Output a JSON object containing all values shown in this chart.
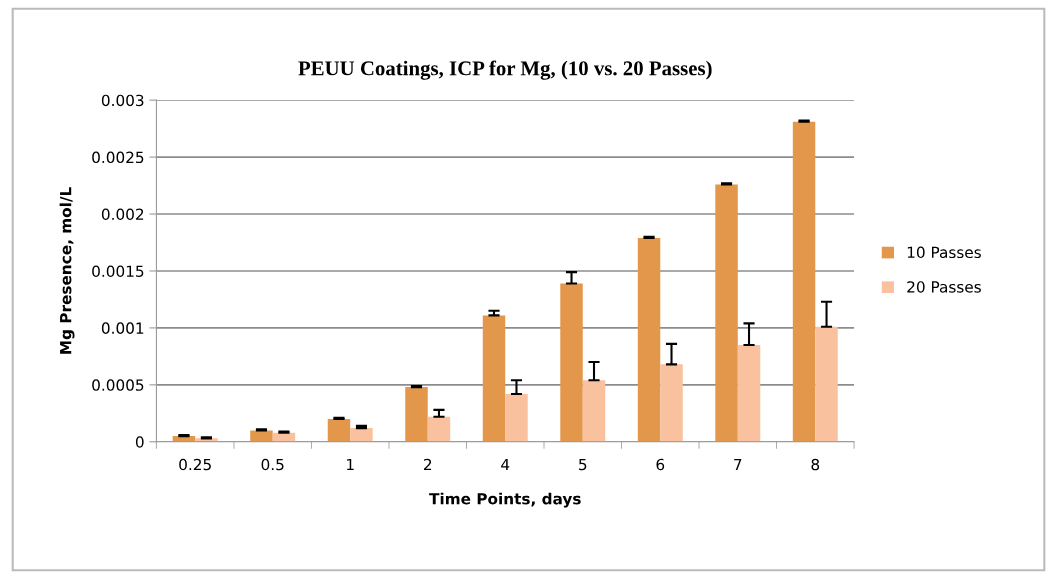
{
  "chart_data": {
    "type": "bar",
    "title": "PEUU Coatings, ICP for Mg, (10 vs. 20 Passes)",
    "xlabel": "Time Points, days",
    "ylabel": "Mg Presence, mol/L",
    "categories": [
      "0.25",
      "0.5",
      "1",
      "2",
      "4",
      "5",
      "6",
      "7",
      "8"
    ],
    "series": [
      {
        "name": "10 Passes",
        "color": "#e3974b",
        "values": [
          5e-05,
          0.0001,
          0.0002,
          0.00048,
          0.00111,
          0.00139,
          0.00179,
          0.00226,
          0.00281
        ],
        "errors": [
          [
            5e-05,
            6e-05
          ],
          [
            0.0001,
            0.00011
          ],
          [
            0.0002,
            0.00021
          ],
          [
            0.00048,
            0.00049
          ],
          [
            0.00111,
            0.00115
          ],
          [
            0.00139,
            0.00149
          ],
          [
            0.00179,
            0.0018
          ],
          [
            0.00226,
            0.00227
          ],
          [
            0.00281,
            0.00282
          ]
        ]
      },
      {
        "name": "20 Passes",
        "color": "#f9c19e",
        "values": [
          3e-05,
          8e-05,
          0.00012,
          0.00022,
          0.00042,
          0.00054,
          0.00068,
          0.00085,
          0.00101
        ],
        "errors": [
          [
            3e-05,
            4e-05
          ],
          [
            8e-05,
            9e-05
          ],
          [
            0.00012,
            0.00014
          ],
          [
            0.00022,
            0.00028
          ],
          [
            0.00042,
            0.00054
          ],
          [
            0.00054,
            0.0007
          ],
          [
            0.00068,
            0.00086
          ],
          [
            0.00085,
            0.00104
          ],
          [
            0.00101,
            0.00123
          ]
        ]
      }
    ],
    "ylim": [
      0,
      0.003
    ],
    "yticks": [
      0,
      0.0005,
      0.001,
      0.0015,
      0.002,
      0.0025,
      0.003
    ],
    "grid": "y",
    "legend": "right"
  }
}
